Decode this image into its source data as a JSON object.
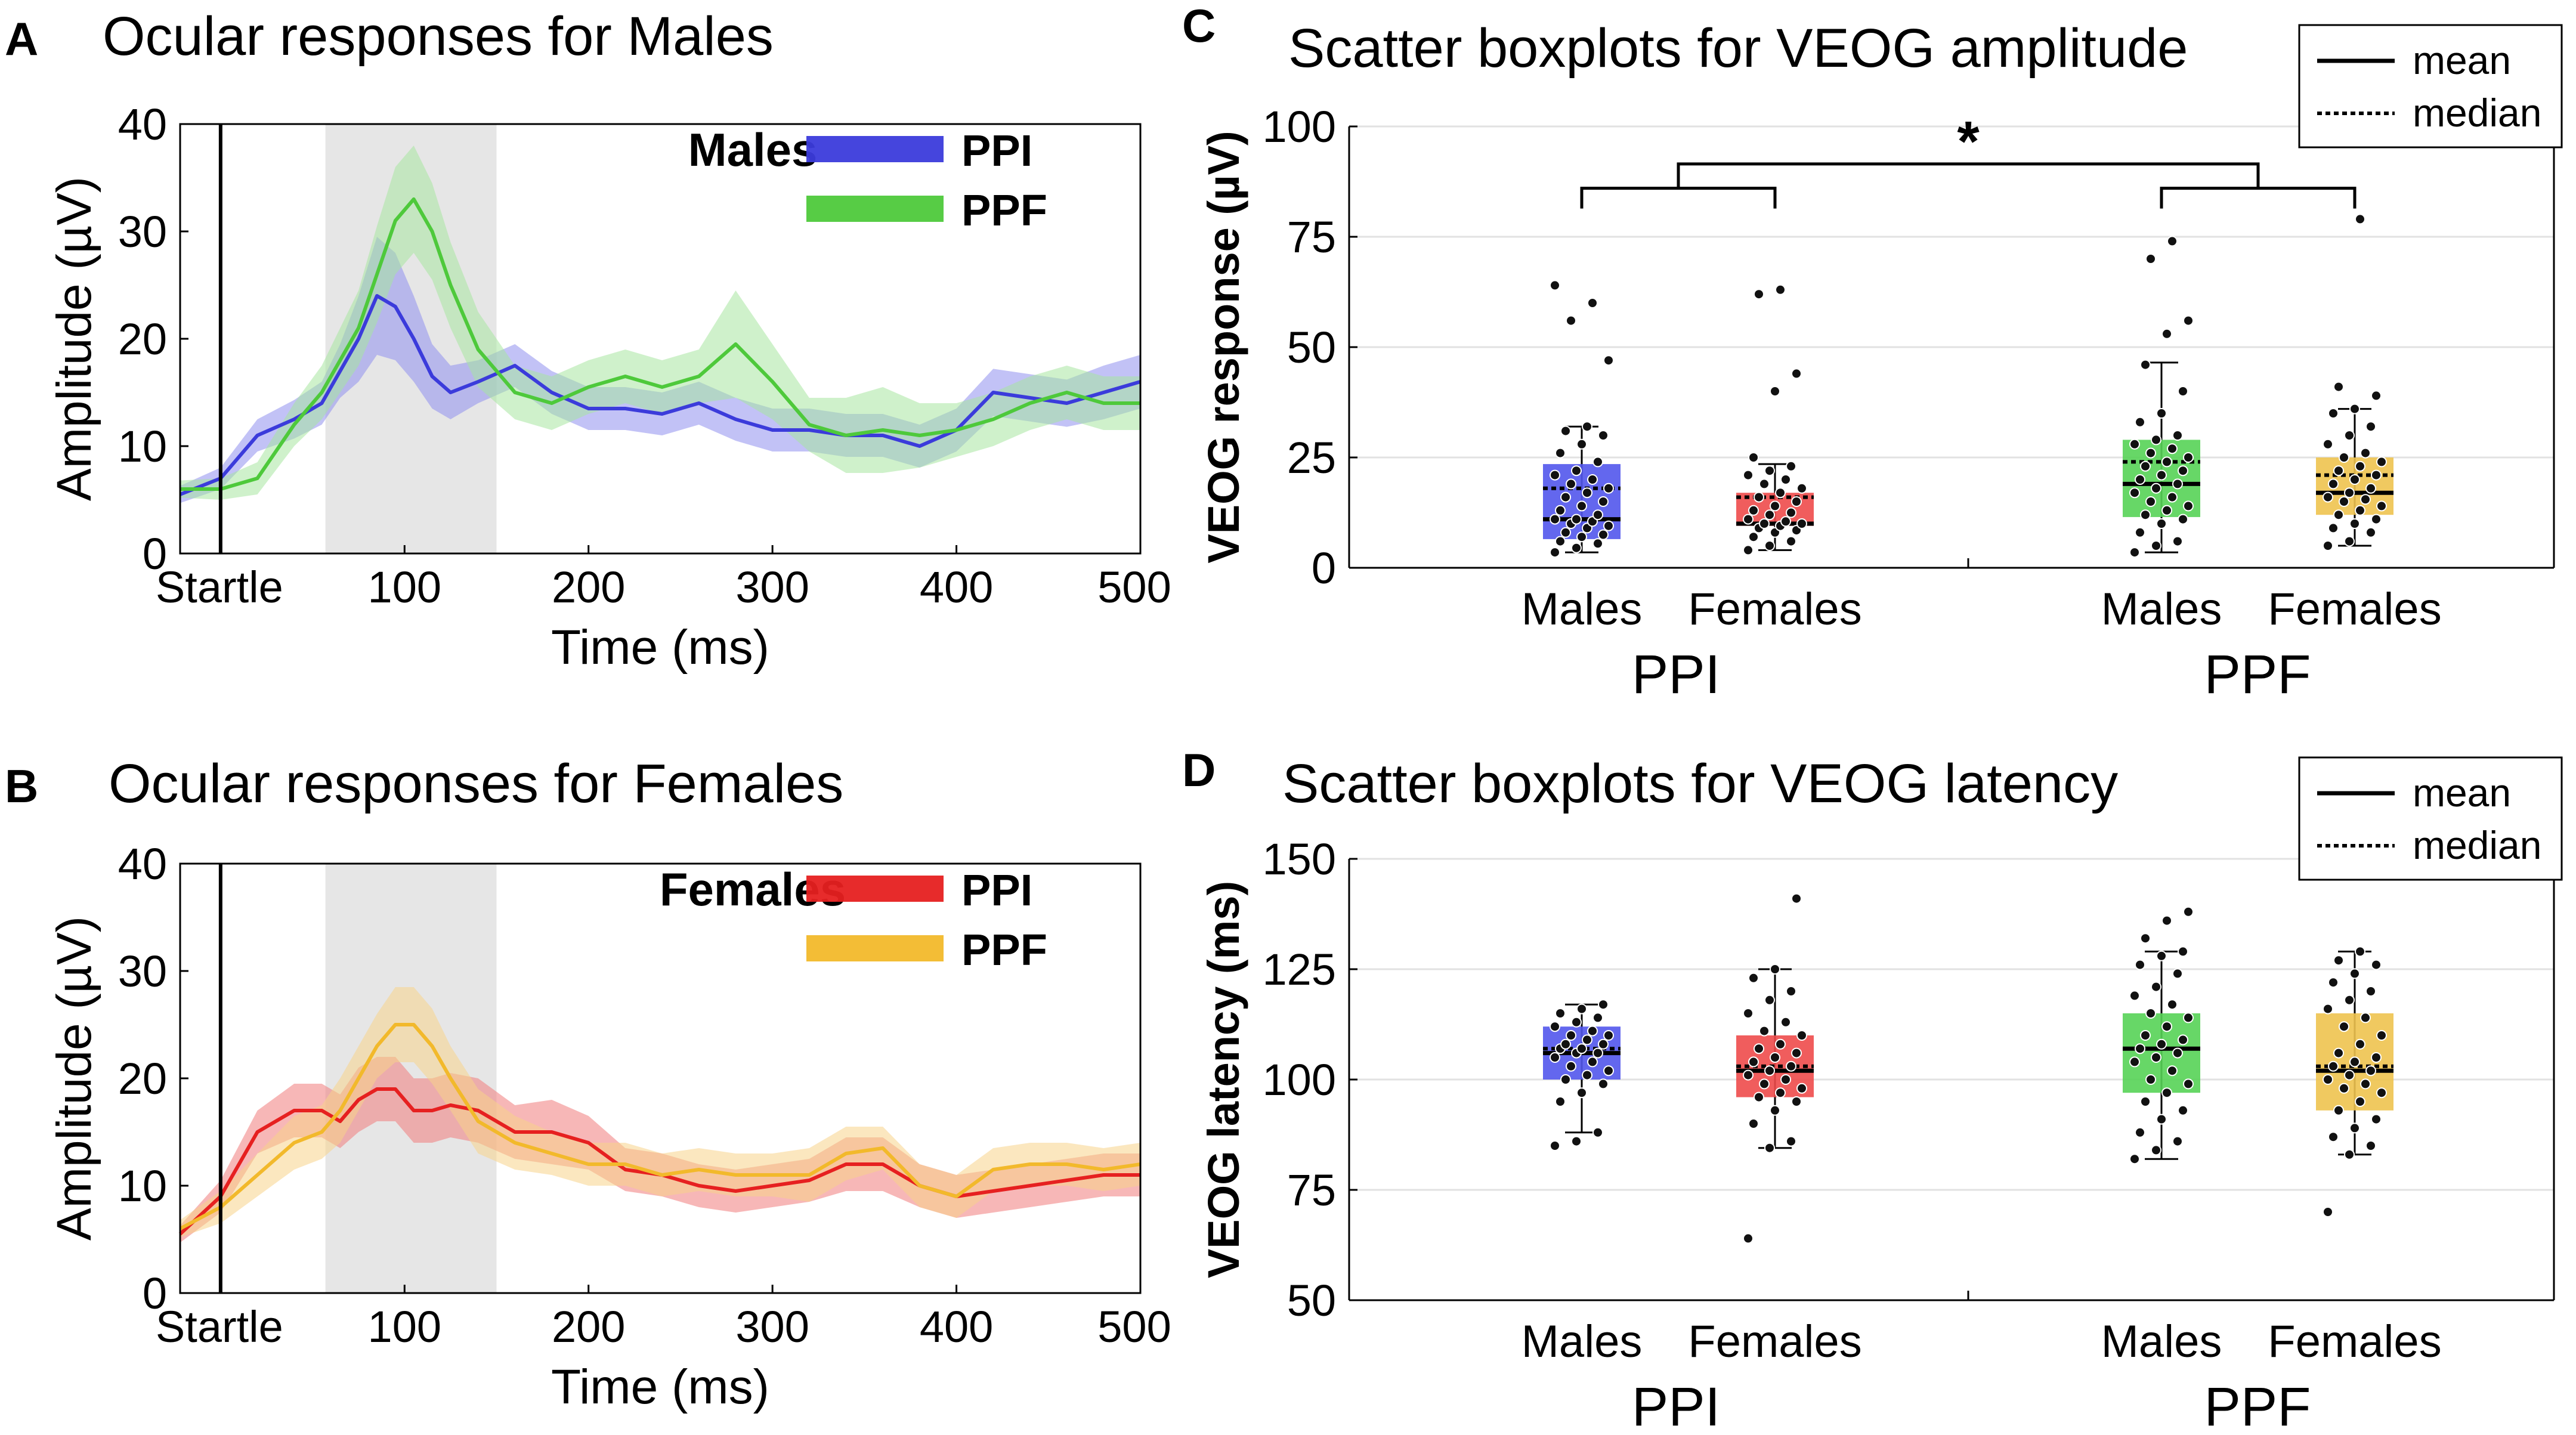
{
  "figure": {
    "panels": [
      {
        "letter": "A",
        "title": "Ocular responses for Males",
        "group": "Males"
      },
      {
        "letter": "B",
        "title": "Ocular responses for Females",
        "group": "Females"
      },
      {
        "letter": "C",
        "title": "Scatter boxplots for VEOG amplitude"
      },
      {
        "letter": "D",
        "title": "Scatter boxplots for VEOG latency"
      }
    ]
  },
  "chart_data": [
    {
      "id": "A",
      "type": "line",
      "title": "Ocular responses for Males",
      "annotation": "Males",
      "xlabel": "Time (ms)",
      "ylabel": "Amplitude (µV)",
      "xlim": [
        -22,
        500
      ],
      "ylim": [
        0,
        40
      ],
      "xticks": [
        0,
        100,
        200,
        300,
        400,
        500
      ],
      "xticklabels": [
        "Startle",
        "100",
        "200",
        "300",
        "400",
        "500"
      ],
      "yticks": [
        0,
        10,
        20,
        30,
        40
      ],
      "shaded_window": [
        57,
        150
      ],
      "startle_line": 0,
      "legend": "top-right",
      "series": [
        {
          "name": "PPI",
          "color": "#3b3bdb",
          "band_color": "#8f8fef",
          "x": [
            -22,
            0,
            20,
            40,
            55,
            65,
            75,
            85,
            95,
            105,
            115,
            125,
            140,
            160,
            180,
            200,
            220,
            240,
            260,
            280,
            300,
            320,
            340,
            360,
            380,
            400,
            420,
            440,
            460,
            480,
            500
          ],
          "y": [
            5.5,
            7,
            11,
            12.5,
            14,
            17,
            20,
            24,
            23,
            20,
            16.5,
            15,
            16,
            17.5,
            15,
            13.5,
            13.5,
            13,
            14,
            12.5,
            11.5,
            11.5,
            11,
            11,
            10,
            11.5,
            15,
            14.5,
            14,
            15,
            16
          ],
          "err": [
            0.8,
            1,
            1.5,
            1.8,
            2,
            2.5,
            4,
            5.5,
            5,
            4,
            3,
            2.5,
            2,
            2,
            2,
            2,
            2,
            2,
            2,
            2,
            2,
            2,
            2,
            2,
            2,
            2,
            2.2,
            2.2,
            2.2,
            2.5,
            2.5
          ]
        },
        {
          "name": "PPF",
          "color": "#4ec93b",
          "band_color": "#a8e6a0",
          "x": [
            -22,
            0,
            20,
            40,
            55,
            65,
            75,
            85,
            95,
            105,
            115,
            125,
            140,
            160,
            180,
            200,
            220,
            240,
            260,
            280,
            300,
            320,
            340,
            360,
            380,
            400,
            420,
            440,
            460,
            480,
            500
          ],
          "y": [
            6,
            6,
            7,
            12,
            15,
            18,
            21,
            26,
            31,
            33,
            30,
            25,
            19,
            15,
            14,
            15.5,
            16.5,
            15.5,
            16.5,
            19.5,
            16,
            12,
            11,
            11.5,
            11,
            11.5,
            12.5,
            14,
            15,
            14,
            14
          ],
          "err": [
            0.8,
            1,
            1.5,
            2,
            2.5,
            3,
            3.5,
            4.5,
            5,
            5,
            4.5,
            4,
            3.5,
            2.5,
            2.5,
            2.5,
            2.5,
            2.5,
            2.5,
            5,
            3.5,
            2.5,
            3.5,
            4,
            3,
            2.5,
            2.5,
            2.5,
            2.5,
            2.5,
            2.5
          ]
        }
      ]
    },
    {
      "id": "B",
      "type": "line",
      "title": "Ocular responses for Females",
      "annotation": "Females",
      "xlabel": "Time (ms)",
      "ylabel": "Amplitude (µV)",
      "xlim": [
        -22,
        500
      ],
      "ylim": [
        0,
        40
      ],
      "xticks": [
        0,
        100,
        200,
        300,
        400,
        500
      ],
      "xticklabels": [
        "Startle",
        "100",
        "200",
        "300",
        "400",
        "500"
      ],
      "yticks": [
        0,
        10,
        20,
        30,
        40
      ],
      "shaded_window": [
        57,
        150
      ],
      "startle_line": 0,
      "legend": "top-right",
      "series": [
        {
          "name": "PPI",
          "color": "#e62020",
          "band_color": "#f07c7c",
          "x": [
            -22,
            0,
            20,
            40,
            55,
            65,
            75,
            85,
            95,
            105,
            115,
            125,
            140,
            160,
            180,
            200,
            220,
            240,
            260,
            280,
            300,
            320,
            340,
            360,
            380,
            400,
            420,
            440,
            460,
            480,
            500
          ],
          "y": [
            5.5,
            9,
            15,
            17,
            17,
            16,
            18,
            19,
            19,
            17,
            17,
            17.5,
            17,
            15,
            15,
            14,
            11.5,
            11,
            10,
            9.5,
            10,
            10.5,
            12,
            12,
            10,
            9,
            9.5,
            10,
            10.5,
            11,
            11
          ],
          "err": [
            0.8,
            1.5,
            2,
            2.5,
            2.5,
            2.5,
            3,
            3,
            3,
            3,
            3,
            3,
            3,
            2.5,
            3,
            2.5,
            2,
            2,
            2,
            2,
            2,
            2,
            2.5,
            2.5,
            2,
            2,
            2,
            2,
            2,
            2,
            2
          ]
        },
        {
          "name": "PPF",
          "color": "#f2b92b",
          "band_color": "#f7d48b",
          "x": [
            -22,
            0,
            20,
            40,
            55,
            65,
            75,
            85,
            95,
            105,
            115,
            125,
            140,
            160,
            180,
            200,
            220,
            240,
            260,
            280,
            300,
            320,
            340,
            360,
            380,
            400,
            420,
            440,
            460,
            480,
            500
          ],
          "y": [
            6,
            8,
            11,
            14,
            15,
            17,
            20,
            23,
            25,
            25,
            23,
            20,
            16,
            14,
            13,
            12,
            12,
            11,
            11.5,
            11,
            11,
            11,
            13,
            13.5,
            10,
            9,
            11.5,
            12,
            12,
            11.5,
            12
          ],
          "err": [
            0.8,
            1.5,
            2,
            2.5,
            2.5,
            3,
            3,
            3,
            3.5,
            3.5,
            3.5,
            3,
            3,
            2.5,
            2,
            2,
            2,
            2,
            2,
            2,
            2,
            2.5,
            2.5,
            2,
            2,
            2,
            2,
            2,
            2,
            2,
            2
          ]
        }
      ]
    },
    {
      "id": "C",
      "type": "box",
      "title": "Scatter boxplots for VEOG amplitude",
      "ylabel": "VEOG response (µV)",
      "ylim": [
        0,
        100
      ],
      "yticks": [
        0,
        25,
        50,
        75,
        100
      ],
      "ygrid": true,
      "legend": {
        "items": [
          "mean",
          "median"
        ],
        "placement": "top-right"
      },
      "significance": "*",
      "groups": [
        {
          "condition": "PPI",
          "sex": "Males",
          "color": "#5256ec",
          "q1": 6.5,
          "median": 11,
          "mean": 18,
          "q3": 23.5,
          "whisker_low": 3.5,
          "whisker_high": 32,
          "points": [
            3.5,
            4.5,
            5.5,
            6,
            7,
            7.5,
            8,
            9,
            9.5,
            10,
            10.5,
            11,
            11,
            12,
            13,
            14,
            15,
            16,
            17,
            18,
            19,
            20,
            21,
            22,
            24,
            26,
            28,
            30,
            31,
            32,
            47,
            56,
            60,
            64
          ]
        },
        {
          "condition": "PPI",
          "sex": "Females",
          "color": "#ee4b4b",
          "q1": 9.5,
          "median": 10,
          "mean": 16,
          "q3": 17,
          "whisker_low": 4,
          "whisker_high": 23.5,
          "points": [
            4,
            5,
            6,
            7,
            8,
            8.5,
            9,
            9.5,
            10,
            10,
            10.5,
            11,
            12,
            12.5,
            13,
            14,
            15,
            16,
            17,
            18,
            19,
            20,
            21,
            22,
            23,
            25,
            40,
            44,
            62,
            63
          ]
        },
        {
          "condition": "PPF",
          "sex": "Males",
          "color": "#56d356",
          "q1": 11.5,
          "median": 19,
          "mean": 24,
          "q3": 29,
          "whisker_low": 3.5,
          "whisker_high": 46.5,
          "points": [
            3.5,
            5,
            6,
            8,
            10,
            11,
            12,
            13,
            14,
            15,
            16,
            17,
            18,
            19,
            20,
            21,
            22,
            23,
            24,
            25,
            26,
            27,
            28,
            29,
            30,
            33,
            35,
            40,
            46,
            53,
            56,
            70,
            74
          ]
        },
        {
          "condition": "PPF",
          "sex": "Females",
          "color": "#eec34f",
          "q1": 12,
          "median": 17,
          "mean": 21,
          "q3": 25,
          "whisker_low": 5,
          "whisker_high": 36,
          "points": [
            5,
            6,
            8,
            9,
            10,
            11,
            12,
            13,
            14,
            15,
            15.5,
            16,
            17,
            18,
            19,
            20,
            21,
            22,
            23,
            24,
            25,
            26,
            28,
            30,
            32,
            35,
            36,
            39,
            41,
            79
          ]
        }
      ],
      "xticklabels": [
        "Males",
        "Females",
        "Males",
        "Females"
      ],
      "conditions": [
        "PPI",
        "PPF"
      ]
    },
    {
      "id": "D",
      "type": "box",
      "title": "Scatter boxplots for VEOG latency",
      "ylabel": "VEOG latency (ms)",
      "ylim": [
        50,
        150
      ],
      "yticks": [
        50,
        75,
        100,
        125,
        150
      ],
      "ygrid": true,
      "legend": {
        "items": [
          "mean",
          "median"
        ],
        "placement": "top-right"
      },
      "groups": [
        {
          "condition": "PPI",
          "sex": "Males",
          "color": "#5256ec",
          "q1": 100,
          "median": 106,
          "mean": 107,
          "q3": 112,
          "whisker_low": 88,
          "whisker_high": 117,
          "points": [
            85,
            86,
            88,
            95,
            97,
            99,
            100,
            101,
            102,
            103,
            104,
            105,
            106,
            106,
            107,
            107,
            108,
            108,
            109,
            110,
            110,
            111,
            112,
            113,
            114,
            115,
            116,
            117
          ]
        },
        {
          "condition": "PPI",
          "sex": "Females",
          "color": "#ee4b4b",
          "q1": 96,
          "median": 102,
          "mean": 103,
          "q3": 110,
          "whisker_low": 84.5,
          "whisker_high": 125,
          "points": [
            64,
            84.5,
            86,
            90,
            93,
            95,
            96,
            97,
            98,
            99,
            100,
            101,
            102,
            103,
            104,
            105,
            106,
            107,
            108,
            110,
            111,
            113,
            115,
            118,
            120,
            123,
            125,
            141
          ]
        },
        {
          "condition": "PPF",
          "sex": "Males",
          "color": "#56d356",
          "q1": 97,
          "median": 107,
          "mean": 107,
          "q3": 115,
          "whisker_low": 82,
          "whisker_high": 129,
          "points": [
            82,
            84,
            86,
            88,
            91,
            93,
            95,
            97,
            99,
            100,
            102,
            104,
            105,
            106,
            107,
            108,
            109,
            110,
            112,
            114,
            115,
            117,
            119,
            121,
            124,
            126,
            128,
            129,
            132,
            136,
            138
          ]
        },
        {
          "condition": "PPF",
          "sex": "Females",
          "color": "#eec34f",
          "q1": 93,
          "median": 102,
          "mean": 103,
          "q3": 115,
          "whisker_low": 83,
          "whisker_high": 129,
          "points": [
            70,
            83,
            85,
            87,
            89,
            91,
            93,
            95,
            97,
            98,
            99,
            100,
            101,
            102,
            103,
            104,
            105,
            106,
            108,
            110,
            112,
            114,
            116,
            118,
            120,
            122,
            124,
            126,
            127,
            129
          ]
        }
      ],
      "xticklabels": [
        "Males",
        "Females",
        "Males",
        "Females"
      ],
      "conditions": [
        "PPI",
        "PPF"
      ]
    }
  ]
}
